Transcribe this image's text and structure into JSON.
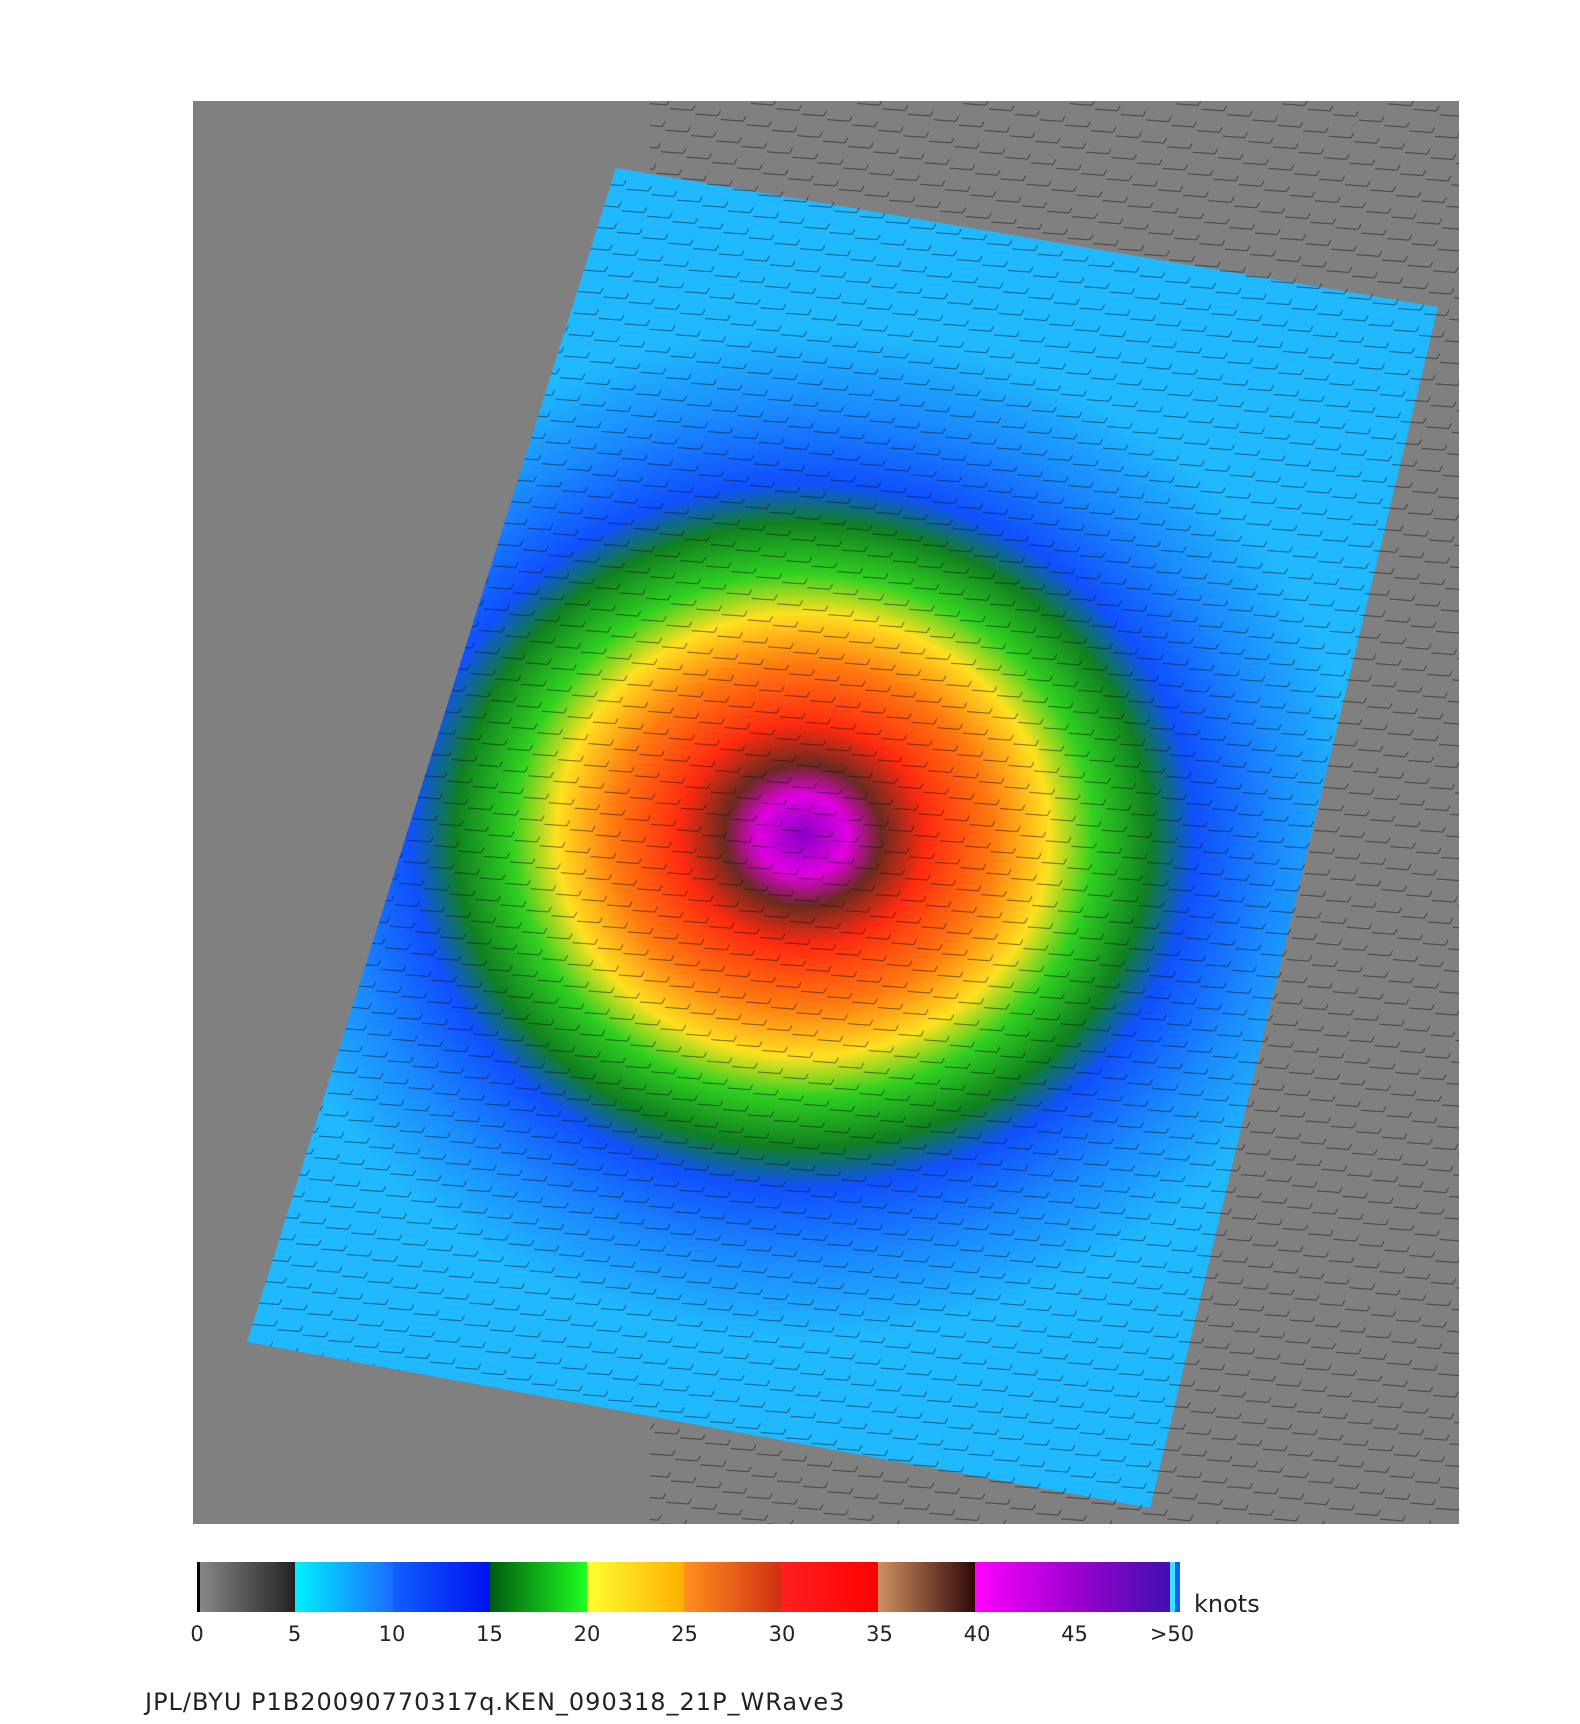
{
  "colorbar": {
    "ticks": [
      0,
      5,
      10,
      15,
      20,
      25,
      30,
      35,
      40,
      45,
      ">50"
    ],
    "unit": "knots"
  },
  "caption": "JPL/BYU  P1B20090770317q.KEN_090318_21P_WRave3"
}
